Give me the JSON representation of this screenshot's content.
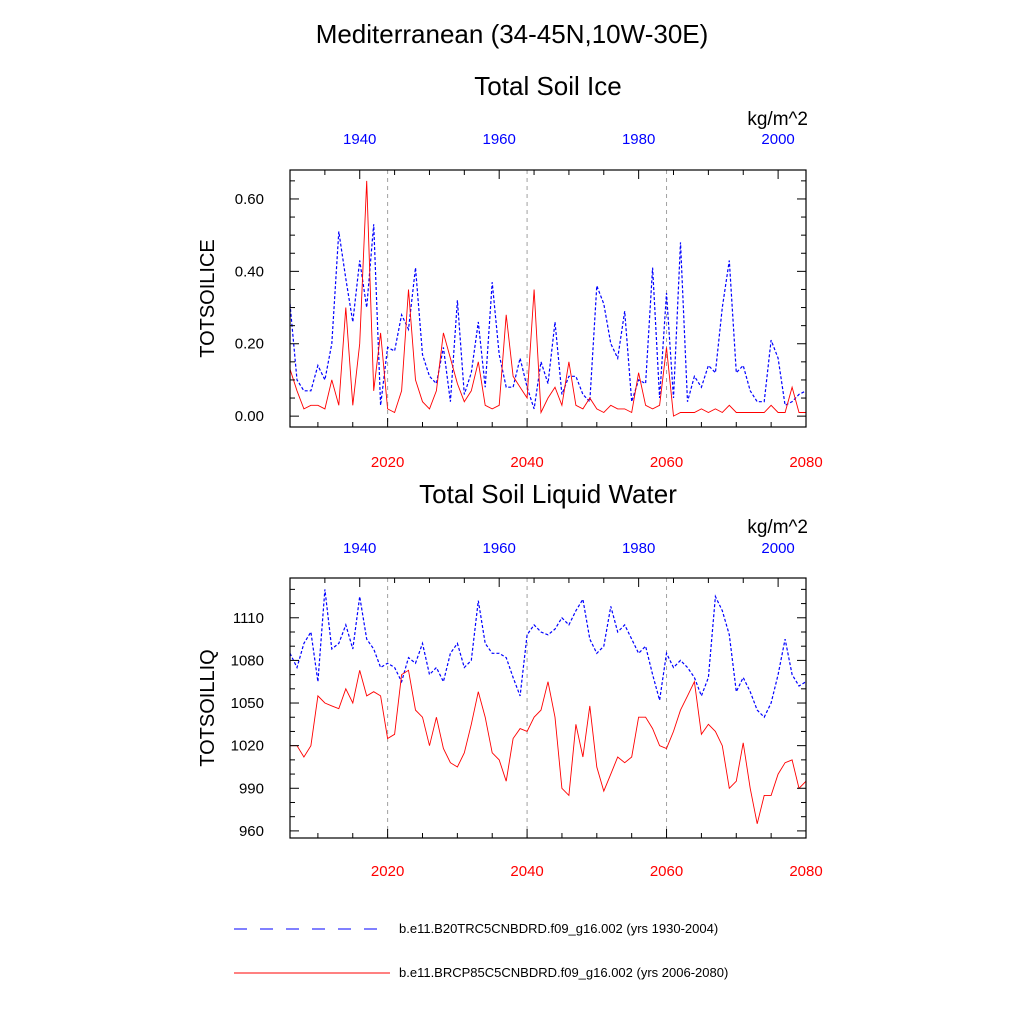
{
  "title": "Mediterranean (34-45N,10W-30E)",
  "legend": [
    {
      "label": "b.e11.B20TRC5CNBDRD.f09_g16.002 (yrs 1930-2004)",
      "color": "#0000ff",
      "style": "dashed"
    },
    {
      "label": "b.e11.BRCP85C5CNBDRD.f09_g16.002 (yrs 2006-2080)",
      "color": "#ff0000",
      "style": "solid"
    }
  ],
  "chart_data": [
    {
      "type": "line",
      "title": "Total Soil Ice",
      "units": "kg/m^2",
      "ylabel": "TOTSOILICE",
      "ylim": [
        -0.03,
        0.68
      ],
      "yticks": [
        0.0,
        0.2,
        0.4,
        0.6
      ],
      "ytick_labels": [
        "0.00",
        "0.20",
        "0.40",
        "0.60"
      ],
      "yminor": [
        0.05,
        0.1,
        0.15,
        0.25,
        0.3,
        0.35,
        0.45,
        0.5,
        0.55,
        0.65
      ],
      "bottom_axis": {
        "lim": [
          2006,
          2080
        ],
        "ticks": [
          2020,
          2040,
          2060,
          2080
        ],
        "labels": [
          "2020",
          "2040",
          "2060",
          "2080"
        ],
        "color": "#ff0000"
      },
      "top_axis": {
        "lim": [
          1930,
          2004
        ],
        "ticks": [
          1940,
          1960,
          1980,
          2000
        ],
        "labels": [
          "1940",
          "1960",
          "1980",
          "2000"
        ],
        "color": "#0000ff"
      },
      "grid_x": [
        2020,
        2040,
        2060
      ],
      "series": [
        {
          "name": "b.e11.B20TRC5CNBDRD.f09_g16.002 (yrs 1930-2004)",
          "axis": "top",
          "color": "#0000ff",
          "dash": true,
          "x_start": 1930,
          "values": [
            0.31,
            0.1,
            0.07,
            0.07,
            0.14,
            0.1,
            0.2,
            0.51,
            0.38,
            0.26,
            0.43,
            0.3,
            0.53,
            0.03,
            0.19,
            0.18,
            0.28,
            0.24,
            0.41,
            0.17,
            0.11,
            0.09,
            0.19,
            0.04,
            0.32,
            0.06,
            0.12,
            0.26,
            0.08,
            0.37,
            0.17,
            0.08,
            0.08,
            0.16,
            0.08,
            0.02,
            0.15,
            0.09,
            0.26,
            0.06,
            0.11,
            0.11,
            0.06,
            0.04,
            0.36,
            0.31,
            0.2,
            0.16,
            0.29,
            0.04,
            0.1,
            0.09,
            0.41,
            0.05,
            0.34,
            0.05,
            0.48,
            0.04,
            0.11,
            0.08,
            0.14,
            0.12,
            0.3,
            0.43,
            0.12,
            0.14,
            0.07,
            0.04,
            0.04,
            0.21,
            0.16,
            0.03,
            0.04,
            0.06,
            0.07
          ]
        },
        {
          "name": "b.e11.BRCP85C5CNBDRD.f09_g16.002 (yrs 2006-2080)",
          "axis": "bottom",
          "color": "#ff0000",
          "dash": false,
          "x_start": 2006,
          "values": [
            0.13,
            0.07,
            0.02,
            0.03,
            0.03,
            0.02,
            0.1,
            0.03,
            0.3,
            0.03,
            0.2,
            0.65,
            0.07,
            0.23,
            0.02,
            0.01,
            0.07,
            0.35,
            0.1,
            0.04,
            0.02,
            0.07,
            0.23,
            0.16,
            0.09,
            0.04,
            0.07,
            0.15,
            0.03,
            0.02,
            0.03,
            0.28,
            0.11,
            0.08,
            0.05,
            0.35,
            0.01,
            0.05,
            0.08,
            0.03,
            0.15,
            0.03,
            0.02,
            0.05,
            0.02,
            0.01,
            0.03,
            0.02,
            0.02,
            0.01,
            0.12,
            0.03,
            0.02,
            0.03,
            0.19,
            0.0,
            0.01,
            0.01,
            0.01,
            0.02,
            0.01,
            0.02,
            0.01,
            0.03,
            0.01,
            0.01,
            0.01,
            0.01,
            0.01,
            0.03,
            0.01,
            0.01,
            0.08,
            0.01,
            0.01
          ]
        }
      ]
    },
    {
      "type": "line",
      "title": "Total Soil Liquid Water",
      "units": "kg/m^2",
      "ylabel": "TOTSOILLIQ",
      "ylim": [
        955,
        1138
      ],
      "yticks": [
        960,
        990,
        1020,
        1050,
        1080,
        1110
      ],
      "ytick_labels": [
        "960",
        "990",
        "1020",
        "1050",
        "1080",
        "1110"
      ],
      "yminor": [
        970,
        980,
        1000,
        1010,
        1030,
        1040,
        1060,
        1070,
        1090,
        1100,
        1120,
        1130
      ],
      "bottom_axis": {
        "lim": [
          2006,
          2080
        ],
        "ticks": [
          2020,
          2040,
          2060,
          2080
        ],
        "labels": [
          "2020",
          "2040",
          "2060",
          "2080"
        ],
        "color": "#ff0000"
      },
      "top_axis": {
        "lim": [
          1930,
          2004
        ],
        "ticks": [
          1940,
          1960,
          1980,
          2000
        ],
        "labels": [
          "1940",
          "1960",
          "1980",
          "2000"
        ],
        "color": "#0000ff"
      },
      "grid_x": [
        2020,
        2040,
        2060
      ],
      "series": [
        {
          "name": "b.e11.B20TRC5CNBDRD.f09_g16.002 (yrs 1930-2004)",
          "axis": "top",
          "color": "#0000ff",
          "dash": true,
          "x_start": 1930,
          "values": [
            1085,
            1075,
            1092,
            1100,
            1065,
            1130,
            1088,
            1092,
            1105,
            1088,
            1125,
            1095,
            1088,
            1075,
            1078,
            1075,
            1065,
            1082,
            1078,
            1092,
            1070,
            1075,
            1065,
            1085,
            1092,
            1075,
            1080,
            1122,
            1092,
            1085,
            1085,
            1082,
            1068,
            1055,
            1098,
            1105,
            1100,
            1098,
            1102,
            1110,
            1105,
            1115,
            1123,
            1095,
            1085,
            1090,
            1118,
            1100,
            1105,
            1095,
            1085,
            1090,
            1070,
            1052,
            1085,
            1075,
            1080,
            1075,
            1068,
            1055,
            1068,
            1125,
            1115,
            1098,
            1058,
            1068,
            1058,
            1045,
            1040,
            1050,
            1070,
            1095,
            1070,
            1062,
            1065
          ]
        },
        {
          "name": "b.e11.BRCP85C5CNBDRD.f09_g16.002 (yrs 2006-2080)",
          "axis": "bottom",
          "color": "#ff0000",
          "dash": false,
          "x_start": 2006,
          "values": [
            1020,
            1020,
            1012,
            1020,
            1055,
            1050,
            1048,
            1046,
            1060,
            1050,
            1073,
            1055,
            1058,
            1055,
            1025,
            1028,
            1070,
            1073,
            1045,
            1040,
            1020,
            1040,
            1018,
            1008,
            1005,
            1015,
            1035,
            1058,
            1040,
            1015,
            1010,
            995,
            1025,
            1032,
            1030,
            1040,
            1045,
            1065,
            1040,
            990,
            985,
            1035,
            1012,
            1048,
            1005,
            988,
            1000,
            1012,
            1008,
            1012,
            1040,
            1040,
            1032,
            1020,
            1018,
            1030,
            1045,
            1055,
            1065,
            1028,
            1035,
            1030,
            1020,
            990,
            995,
            1022,
            990,
            965,
            985,
            985,
            1000,
            1008,
            1010,
            990,
            995
          ]
        }
      ]
    }
  ]
}
